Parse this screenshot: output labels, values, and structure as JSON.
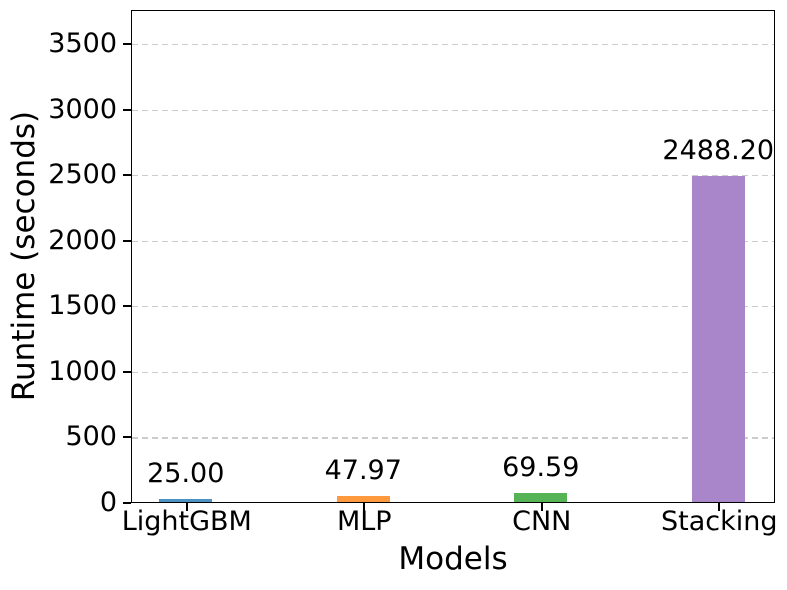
{
  "chart_data": {
    "type": "bar",
    "title": "",
    "xlabel": "Models",
    "ylabel": "Runtime (seconds)",
    "categories": [
      "LightGBM",
      "MLP",
      "CNN",
      "Stacking"
    ],
    "values": [
      25.0,
      47.97,
      69.59,
      2488.2
    ],
    "bar_value_labels": [
      "25.00",
      "47.97",
      "69.59",
      "2488.20"
    ],
    "bar_colors": [
      "#4c92c3",
      "#ff993e",
      "#56b356",
      "#a985ca"
    ],
    "yticks": [
      0,
      500,
      1000,
      1500,
      2000,
      2500,
      3000,
      3500
    ],
    "ytick_labels": [
      "0",
      "500",
      "1000",
      "1500",
      "2000",
      "2500",
      "3000",
      "3500"
    ],
    "ylim": [
      0,
      3763
    ],
    "grid": {
      "axis": "y",
      "style": "dashed",
      "color": "#cccccc"
    },
    "legend": "none",
    "background_color": "#ffffff",
    "spine_color": "#000000"
  }
}
